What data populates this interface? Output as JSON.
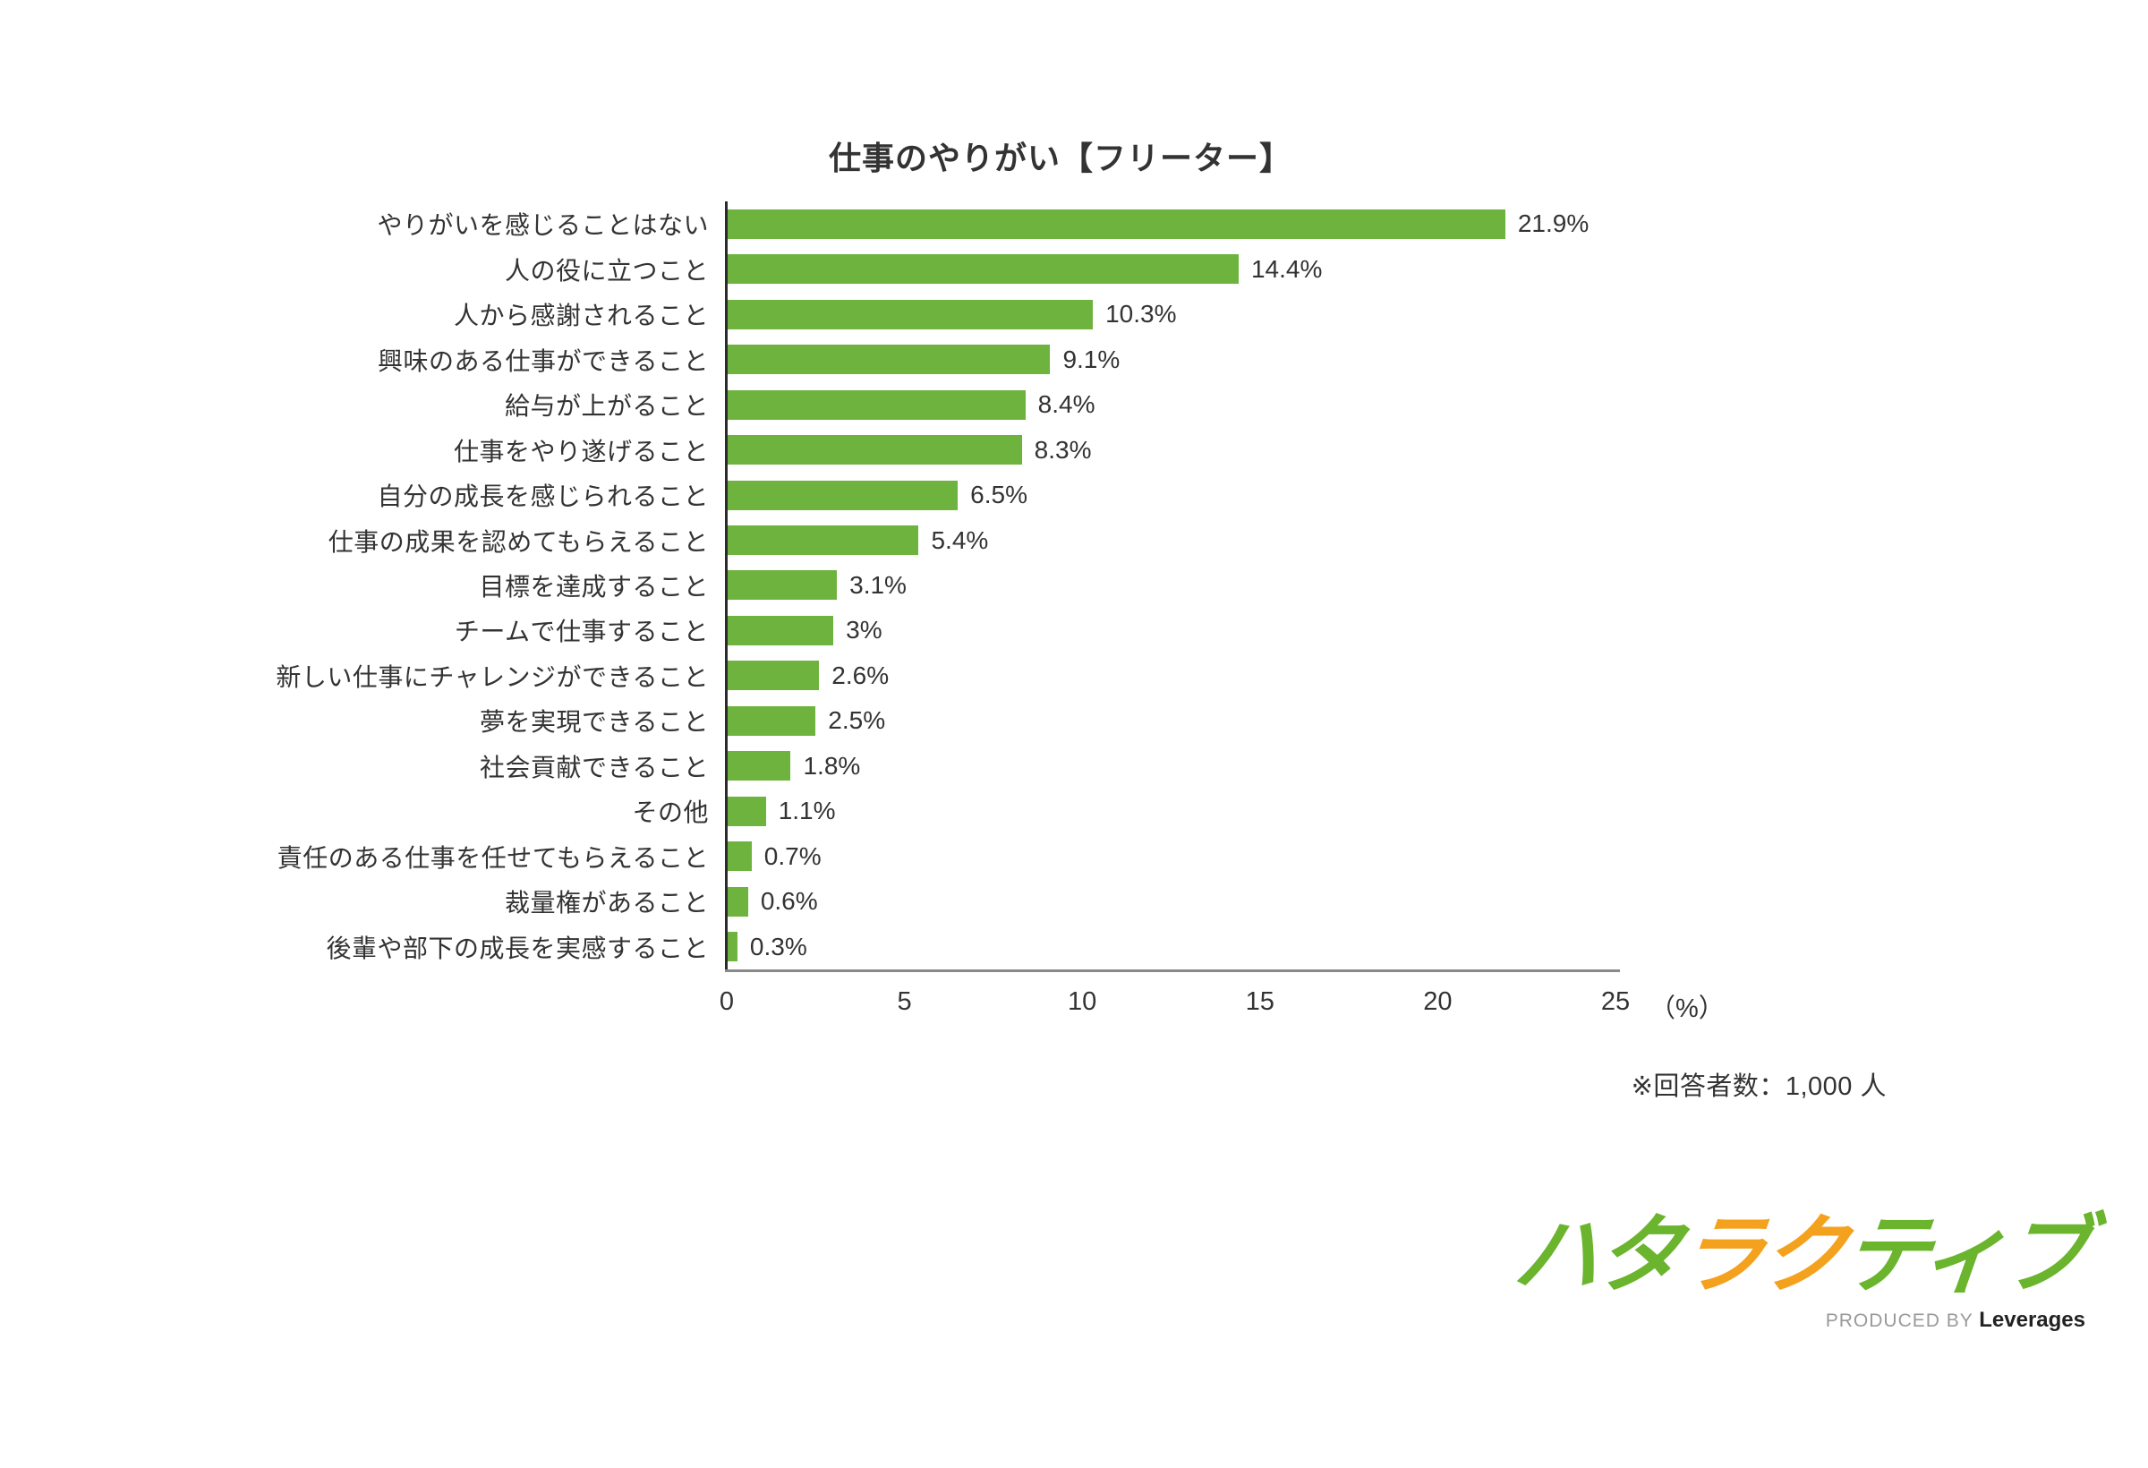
{
  "chart_data": {
    "type": "bar",
    "orientation": "horizontal",
    "title": "仕事のやりがい【フリーター】",
    "categories": [
      "やりがいを感じることはない",
      "人の役に立つこと",
      "人から感謝されること",
      "興味のある仕事ができること",
      "給与が上がること",
      "仕事をやり遂げること",
      "自分の成長を感じられること",
      "仕事の成果を認めてもらえること",
      "目標を達成すること",
      "チームで仕事すること",
      "新しい仕事にチャレンジができること",
      "夢を実現できること",
      "社会貢献できること",
      "その他",
      "責任のある仕事を任せてもらえること",
      "裁量権があること",
      "後輩や部下の成長を実感すること"
    ],
    "values": [
      21.9,
      14.4,
      10.3,
      9.1,
      8.4,
      8.3,
      6.5,
      5.4,
      3.1,
      3.0,
      2.6,
      2.5,
      1.8,
      1.1,
      0.7,
      0.6,
      0.3
    ],
    "value_labels": [
      "21.9%",
      "14.4%",
      "10.3%",
      "9.1%",
      "8.4%",
      "8.3%",
      "6.5%",
      "5.4%",
      "3.1%",
      "3%",
      "2.6%",
      "2.5%",
      "1.8%",
      "1.1%",
      "0.7%",
      "0.6%",
      "0.3%"
    ],
    "xlim": [
      0,
      25
    ],
    "x_ticks": [
      "0",
      "5",
      "10",
      "15",
      "20",
      "25"
    ],
    "x_tick_values": [
      0,
      5,
      10,
      15,
      20,
      25
    ],
    "x_unit_label": "（%）",
    "bar_color": "#6EB33D",
    "y_axis_color": "#2b2b2b",
    "x_axis_color": "#8a8a8a",
    "grid": false,
    "legend": "none"
  },
  "note": "※回答者数：1,000 人",
  "logo": {
    "text": "ハタラクティブ",
    "chars": [
      {
        "ch": "ハ",
        "color": "green"
      },
      {
        "ch": "タ",
        "color": "green"
      },
      {
        "ch": "ラ",
        "color": "orange"
      },
      {
        "ch": "ク",
        "color": "orange"
      },
      {
        "ch": "テ",
        "color": "green"
      },
      {
        "ch": "ィ",
        "color": "green"
      },
      {
        "ch": "ブ",
        "color": "green"
      }
    ],
    "green": "#6BB42E",
    "orange": "#F4A11D",
    "byline_prefix": "PRODUCED BY",
    "byline_brand": "Leverages"
  }
}
